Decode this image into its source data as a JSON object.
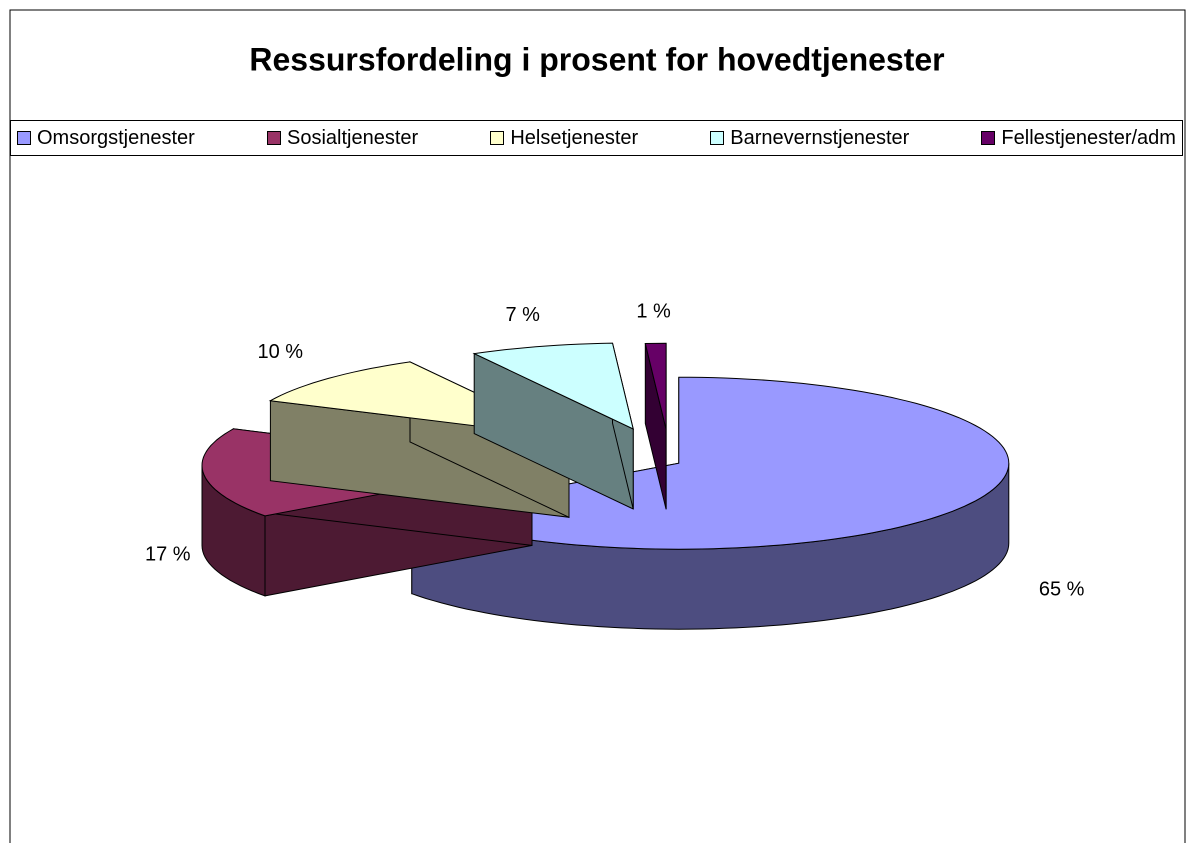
{
  "chart_data": {
    "type": "pie",
    "title": "Ressursfordeling i prosent for hovedtjenester",
    "categories": [
      "Omsorgstjenester",
      "Sosialtjenester",
      "Helsetjenester",
      "Barnevernstjenester",
      "Fellestjenester/adm"
    ],
    "values": [
      65,
      17,
      10,
      7,
      1
    ],
    "value_labels": [
      "65 %",
      "17 %",
      "10 %",
      "7 %",
      "1 %"
    ],
    "colors": [
      "#9999ff",
      "#993366",
      "#ffffcc",
      "#ccffff",
      "#660066"
    ],
    "legend": "top"
  }
}
